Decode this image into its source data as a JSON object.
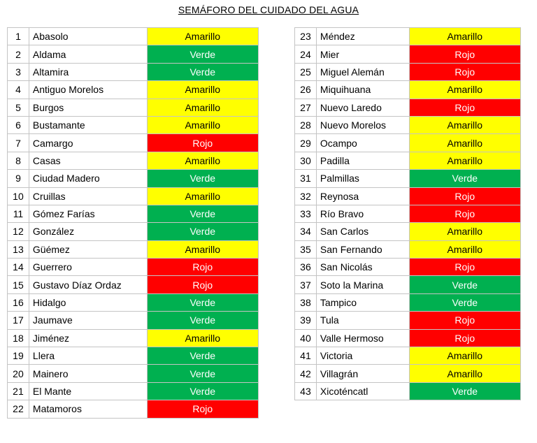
{
  "title": "SEMÁFORO DEL CUIDADO DEL AGUA",
  "colors": {
    "Amarillo": "#ffff00",
    "Verde": "#00b050",
    "Rojo": "#ff0000"
  },
  "left_table": [
    {
      "n": "1",
      "name": "Abasolo",
      "status": "Amarillo"
    },
    {
      "n": "2",
      "name": "Aldama",
      "status": "Verde"
    },
    {
      "n": "3",
      "name": "Altamira",
      "status": "Verde"
    },
    {
      "n": "4",
      "name": "Antiguo Morelos",
      "status": "Amarillo"
    },
    {
      "n": "5",
      "name": "Burgos",
      "status": "Amarillo"
    },
    {
      "n": "6",
      "name": "Bustamante",
      "status": "Amarillo"
    },
    {
      "n": "7",
      "name": "Camargo",
      "status": "Rojo"
    },
    {
      "n": "8",
      "name": "Casas",
      "status": "Amarillo"
    },
    {
      "n": "9",
      "name": "Ciudad Madero",
      "status": "Verde"
    },
    {
      "n": "10",
      "name": "Cruillas",
      "status": "Amarillo"
    },
    {
      "n": "11",
      "name": "Gómez Farías",
      "status": "Verde"
    },
    {
      "n": "12",
      "name": "González",
      "status": "Verde"
    },
    {
      "n": "13",
      "name": "Güémez",
      "status": "Amarillo"
    },
    {
      "n": "14",
      "name": "Guerrero",
      "status": "Rojo"
    },
    {
      "n": "15",
      "name": "Gustavo Díaz Ordaz",
      "status": "Rojo"
    },
    {
      "n": "16",
      "name": "Hidalgo",
      "status": "Verde"
    },
    {
      "n": "17",
      "name": "Jaumave",
      "status": "Verde"
    },
    {
      "n": "18",
      "name": "Jiménez",
      "status": "Amarillo"
    },
    {
      "n": "19",
      "name": "Llera",
      "status": "Verde"
    },
    {
      "n": "20",
      "name": "Mainero",
      "status": "Verde"
    },
    {
      "n": "21",
      "name": "El Mante",
      "status": "Verde"
    },
    {
      "n": "22",
      "name": "Matamoros",
      "status": "Rojo"
    }
  ],
  "right_table": [
    {
      "n": "23",
      "name": "Méndez",
      "status": "Amarillo"
    },
    {
      "n": "24",
      "name": "Mier",
      "status": "Rojo"
    },
    {
      "n": "25",
      "name": "Miguel Alemán",
      "status": "Rojo"
    },
    {
      "n": "26",
      "name": "Miquihuana",
      "status": "Amarillo"
    },
    {
      "n": "27",
      "name": "Nuevo Laredo",
      "status": "Rojo"
    },
    {
      "n": "28",
      "name": "Nuevo Morelos",
      "status": "Amarillo"
    },
    {
      "n": "29",
      "name": "Ocampo",
      "status": "Amarillo"
    },
    {
      "n": "30",
      "name": "Padilla",
      "status": "Amarillo"
    },
    {
      "n": "31",
      "name": "Palmillas",
      "status": "Verde"
    },
    {
      "n": "32",
      "name": "Reynosa",
      "status": "Rojo"
    },
    {
      "n": "33",
      "name": "Río Bravo",
      "status": "Rojo"
    },
    {
      "n": "34",
      "name": "San Carlos",
      "status": "Amarillo"
    },
    {
      "n": "35",
      "name": "San Fernando",
      "status": "Amarillo"
    },
    {
      "n": "36",
      "name": "San Nicolás",
      "status": "Rojo"
    },
    {
      "n": "37",
      "name": "Soto la Marina",
      "status": "Verde"
    },
    {
      "n": "38",
      "name": "Tampico",
      "status": "Verde"
    },
    {
      "n": "39",
      "name": "Tula",
      "status": "Rojo"
    },
    {
      "n": "40",
      "name": "Valle Hermoso",
      "status": "Rojo"
    },
    {
      "n": "41",
      "name": "Victoria",
      "status": "Amarillo"
    },
    {
      "n": "42",
      "name": "Villagrán",
      "status": "Amarillo"
    },
    {
      "n": "43",
      "name": "Xicoténcatl",
      "status": "Verde"
    }
  ]
}
